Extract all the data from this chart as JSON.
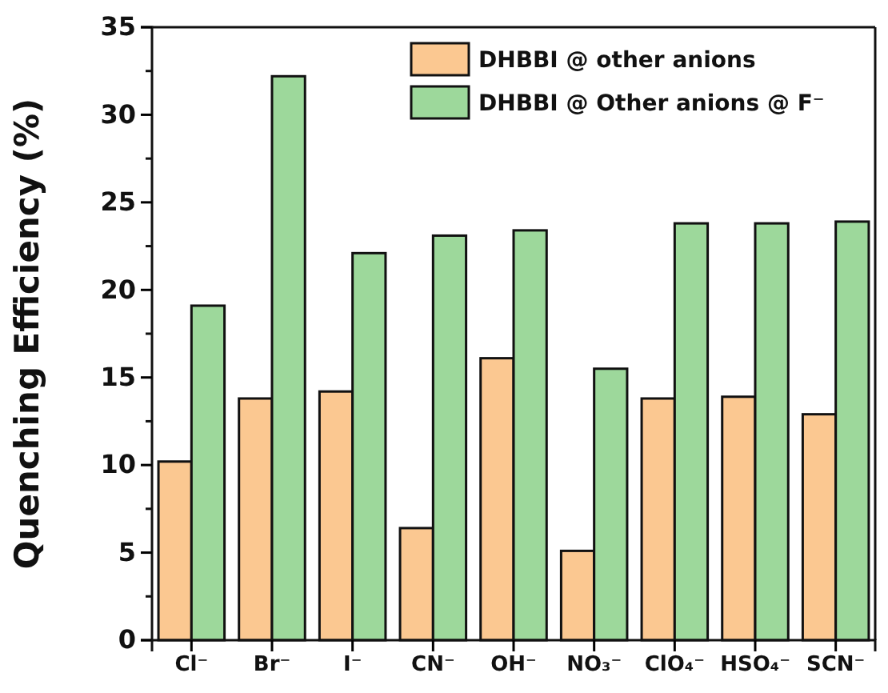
{
  "chart_data": {
    "type": "bar",
    "ylabel": "Quenching Efficiency (%)",
    "categories": [
      "Cl⁻",
      "Br⁻",
      "I⁻",
      "CN⁻",
      "OH⁻",
      "NO₃⁻",
      "ClO₄⁻",
      "HSO₄⁻",
      "SCN⁻"
    ],
    "series": [
      {
        "name": "DHBBI @ other anions",
        "color": "#fbc891",
        "values": [
          10.2,
          13.8,
          14.2,
          6.4,
          16.1,
          5.1,
          13.8,
          13.9,
          12.9
        ]
      },
      {
        "name": "DHBBI @ Other anions @ F⁻",
        "color": "#9dd89b",
        "values": [
          19.1,
          32.2,
          22.1,
          23.1,
          23.4,
          15.5,
          23.8,
          23.8,
          23.9
        ]
      }
    ],
    "ylim": [
      0,
      35
    ],
    "yticks": [
      0,
      5,
      10,
      15,
      20,
      25,
      30,
      35
    ],
    "grid": false,
    "legend": "top right"
  }
}
